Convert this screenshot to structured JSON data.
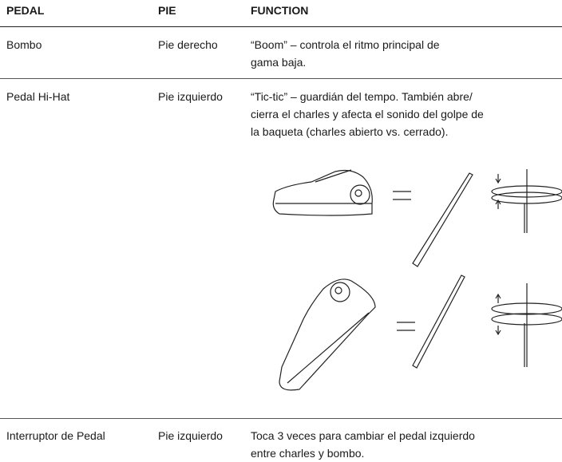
{
  "header": {
    "columns": [
      "PEDAL",
      "PIE",
      "FUNCTION"
    ]
  },
  "table": {
    "rows": [
      [
        "Bombo",
        "Pie derecho",
        [
          "“Boom” – controla el ritmo principal de",
          "gama baja."
        ]
      ],
      [
        "Pedal Hi-Hat",
        "Pie izquierdo",
        [
          "“Tic-tic” – guardián del tempo. También abre/",
          "cierra el charles y afecta el sonido del golpe de",
          "la baqueta (charles abierto vs. cerrado)."
        ]
      ],
      [
        "Interruptor de Pedal",
        "Pie izquierdo",
        [
          "Toca 3 veces para cambiar el pedal izquierdo",
          "entre charles y bombo."
        ]
      ]
    ]
  }
}
